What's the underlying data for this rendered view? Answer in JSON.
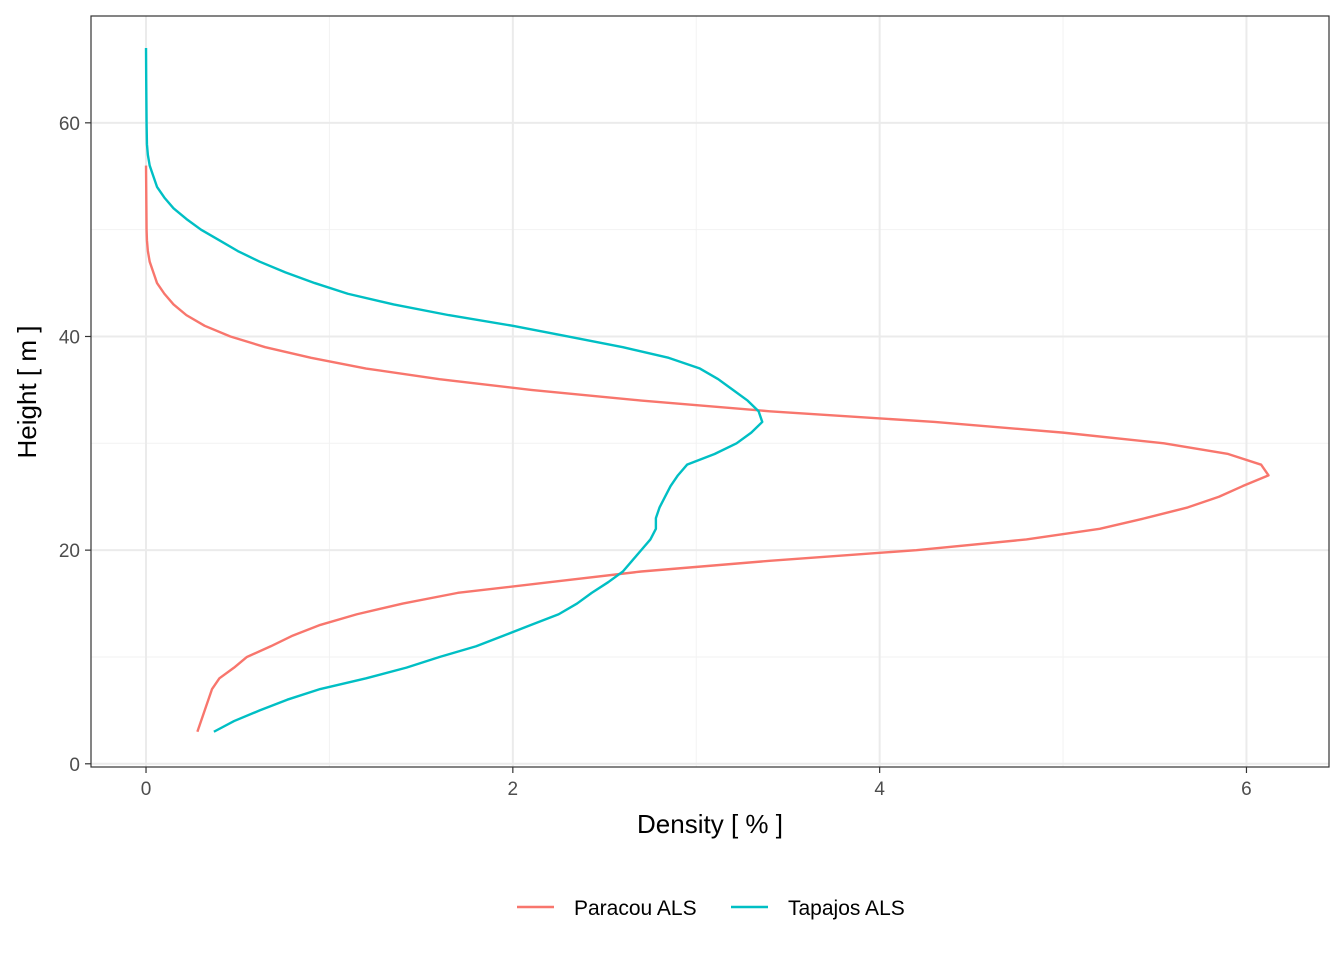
{
  "chart_data": {
    "type": "line",
    "title": "",
    "xlabel": "Density [ % ]",
    "ylabel": "Height [ m ]",
    "xlim": [
      -0.3,
      6.45
    ],
    "ylim": [
      -0.3,
      70
    ],
    "x_ticks": [
      0,
      2,
      4,
      6
    ],
    "y_ticks": [
      0,
      20,
      40,
      60
    ],
    "x_minor": [
      1,
      3,
      5
    ],
    "y_minor": [
      10,
      30,
      50
    ],
    "grid": true,
    "legend": "bottom",
    "series": [
      {
        "name": "Paracou ALS",
        "color": "#F8766D",
        "points": [
          [
            0.28,
            3
          ],
          [
            0.32,
            5
          ],
          [
            0.36,
            7
          ],
          [
            0.4,
            8
          ],
          [
            0.48,
            9
          ],
          [
            0.55,
            10
          ],
          [
            0.68,
            11
          ],
          [
            0.8,
            12
          ],
          [
            0.95,
            13
          ],
          [
            1.15,
            14
          ],
          [
            1.4,
            15
          ],
          [
            1.7,
            16
          ],
          [
            2.2,
            17
          ],
          [
            2.7,
            18
          ],
          [
            3.4,
            19
          ],
          [
            4.2,
            20
          ],
          [
            4.8,
            21
          ],
          [
            5.2,
            22
          ],
          [
            5.45,
            23
          ],
          [
            5.68,
            24
          ],
          [
            5.85,
            25
          ],
          [
            5.98,
            26
          ],
          [
            6.12,
            27
          ],
          [
            6.08,
            28
          ],
          [
            5.9,
            29
          ],
          [
            5.55,
            30
          ],
          [
            5.0,
            31
          ],
          [
            4.3,
            32
          ],
          [
            3.4,
            33
          ],
          [
            2.7,
            34
          ],
          [
            2.1,
            35
          ],
          [
            1.6,
            36
          ],
          [
            1.2,
            37
          ],
          [
            0.9,
            38
          ],
          [
            0.65,
            39
          ],
          [
            0.46,
            40
          ],
          [
            0.32,
            41
          ],
          [
            0.22,
            42
          ],
          [
            0.15,
            43
          ],
          [
            0.1,
            44
          ],
          [
            0.06,
            45
          ],
          [
            0.04,
            46
          ],
          [
            0.02,
            47
          ],
          [
            0.01,
            48
          ],
          [
            0.005,
            49
          ],
          [
            0.003,
            50
          ],
          [
            0.002,
            52
          ],
          [
            0.001,
            54
          ],
          [
            0.0,
            56
          ]
        ]
      },
      {
        "name": "Tapajos ALS",
        "color": "#00BFC4",
        "points": [
          [
            0.37,
            3
          ],
          [
            0.48,
            4
          ],
          [
            0.62,
            5
          ],
          [
            0.77,
            6
          ],
          [
            0.95,
            7
          ],
          [
            1.2,
            8
          ],
          [
            1.42,
            9
          ],
          [
            1.6,
            10
          ],
          [
            1.8,
            11
          ],
          [
            1.95,
            12
          ],
          [
            2.1,
            13
          ],
          [
            2.25,
            14
          ],
          [
            2.35,
            15
          ],
          [
            2.43,
            16
          ],
          [
            2.52,
            17
          ],
          [
            2.6,
            18
          ],
          [
            2.65,
            19
          ],
          [
            2.7,
            20
          ],
          [
            2.75,
            21
          ],
          [
            2.78,
            22
          ],
          [
            2.78,
            23
          ],
          [
            2.8,
            24
          ],
          [
            2.83,
            25
          ],
          [
            2.86,
            26
          ],
          [
            2.9,
            27
          ],
          [
            2.95,
            28
          ],
          [
            3.1,
            29
          ],
          [
            3.22,
            30
          ],
          [
            3.3,
            31
          ],
          [
            3.36,
            32
          ],
          [
            3.34,
            33
          ],
          [
            3.28,
            34
          ],
          [
            3.2,
            35
          ],
          [
            3.12,
            36
          ],
          [
            3.02,
            37
          ],
          [
            2.85,
            38
          ],
          [
            2.6,
            39
          ],
          [
            2.3,
            40
          ],
          [
            2.0,
            41
          ],
          [
            1.65,
            42
          ],
          [
            1.35,
            43
          ],
          [
            1.1,
            44
          ],
          [
            0.92,
            45
          ],
          [
            0.76,
            46
          ],
          [
            0.62,
            47
          ],
          [
            0.5,
            48
          ],
          [
            0.4,
            49
          ],
          [
            0.3,
            50
          ],
          [
            0.22,
            51
          ],
          [
            0.15,
            52
          ],
          [
            0.1,
            53
          ],
          [
            0.06,
            54
          ],
          [
            0.04,
            55
          ],
          [
            0.02,
            56
          ],
          [
            0.01,
            57
          ],
          [
            0.005,
            58
          ],
          [
            0.003,
            60
          ],
          [
            0.002,
            62
          ],
          [
            0.001,
            64
          ],
          [
            0.0,
            67
          ]
        ]
      }
    ]
  }
}
